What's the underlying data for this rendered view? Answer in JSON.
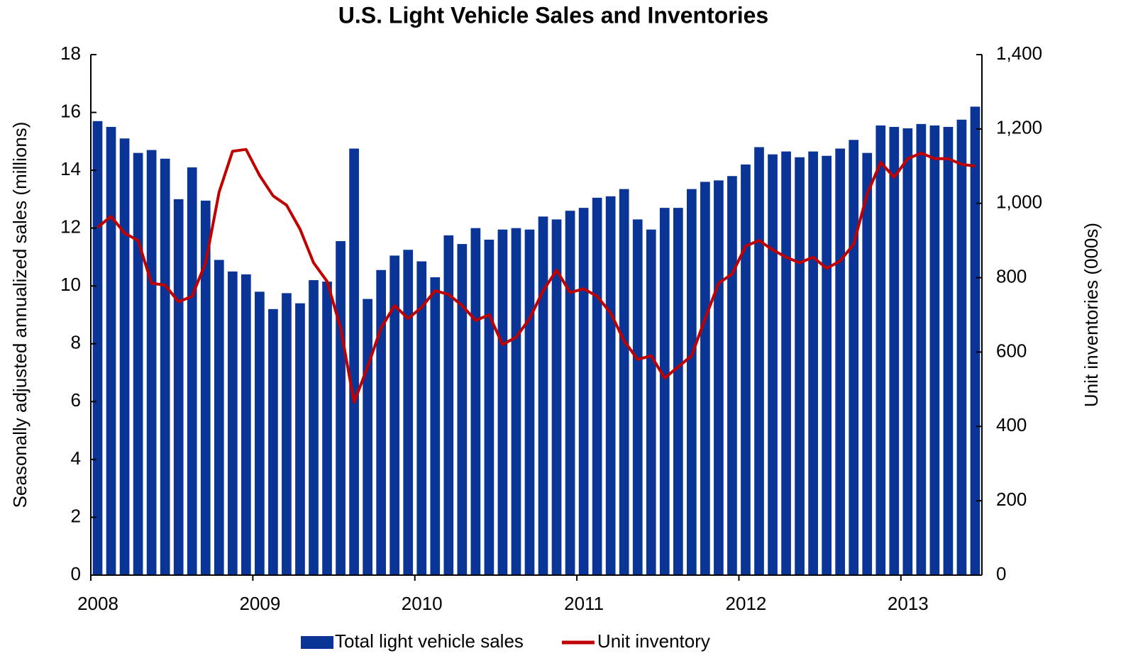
{
  "chart_data": {
    "type": "bar_line",
    "title": "U.S. Light Vehicle Sales and Inventories",
    "y_label": "Seasonally adjusted annualized sales (millions)",
    "y2_label": "Unit inventories (000s)",
    "categories": [
      "2008",
      null,
      null,
      null,
      null,
      null,
      null,
      null,
      null,
      null,
      null,
      null,
      "2009",
      null,
      null,
      null,
      null,
      null,
      null,
      null,
      null,
      null,
      null,
      null,
      "2010",
      null,
      null,
      null,
      null,
      null,
      null,
      null,
      null,
      null,
      null,
      null,
      "2011",
      null,
      null,
      null,
      null,
      null,
      null,
      null,
      null,
      null,
      null,
      null,
      "2012",
      null,
      null,
      null,
      null,
      null,
      null,
      null,
      null,
      null,
      null,
      null,
      "2013",
      null,
      null,
      null,
      null,
      null
    ],
    "series": [
      {
        "name": "Total light vehicle sales",
        "type": "bar",
        "color": "#0a3596",
        "values": [
          15.7,
          15.5,
          15.1,
          14.6,
          14.7,
          14.4,
          13.0,
          14.1,
          12.95,
          10.9,
          10.5,
          10.4,
          9.8,
          9.2,
          9.75,
          9.4,
          10.2,
          10.15,
          11.55,
          14.75,
          9.55,
          10.55,
          11.05,
          11.25,
          10.85,
          10.3,
          11.75,
          11.45,
          12.0,
          11.6,
          11.95,
          12.0,
          11.95,
          12.4,
          12.3,
          12.6,
          12.7,
          13.05,
          13.1,
          13.35,
          12.3,
          11.95,
          12.7,
          12.7,
          13.35,
          13.6,
          13.65,
          13.8,
          14.2,
          14.8,
          14.55,
          14.65,
          14.45,
          14.65,
          14.5,
          14.75,
          15.05,
          14.6,
          15.55,
          15.5,
          15.45,
          15.6,
          15.55,
          15.5,
          15.75,
          16.2
        ]
      },
      {
        "name": "Unit inventory",
        "type": "line",
        "axis": "y2",
        "color": "#c00000",
        "values": [
          935,
          965,
          920,
          900,
          785,
          780,
          735,
          750,
          840,
          1030,
          1140,
          1145,
          1075,
          1020,
          995,
          930,
          840,
          790,
          665,
          465,
          560,
          665,
          725,
          690,
          720,
          765,
          755,
          725,
          685,
          700,
          620,
          640,
          690,
          765,
          820,
          760,
          770,
          750,
          705,
          630,
          580,
          590,
          530,
          560,
          590,
          690,
          785,
          810,
          885,
          900,
          875,
          855,
          840,
          855,
          825,
          845,
          890,
          1025,
          1110,
          1070,
          1120,
          1135,
          1120,
          1120,
          1105,
          1100
        ]
      }
    ],
    "ylim": [
      0,
      18
    ],
    "yticks": [
      0,
      2,
      4,
      6,
      8,
      10,
      12,
      14,
      16,
      18
    ],
    "y2lim": [
      0,
      1400
    ],
    "y2ticks": [
      0,
      200,
      400,
      600,
      800,
      {
        "value": 1000,
        "label": "1,000"
      },
      {
        "value": 1200,
        "label": "1,200"
      },
      {
        "value": 1400,
        "label": "1,400"
      }
    ],
    "legend": "bottom"
  }
}
